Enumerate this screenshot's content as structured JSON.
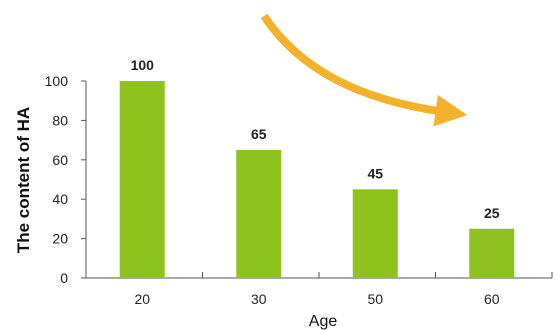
{
  "chart_data": {
    "type": "bar",
    "categories": [
      "20",
      "30",
      "50",
      "60"
    ],
    "values": [
      100,
      65,
      45,
      25
    ],
    "data_labels": [
      "100",
      "65",
      "45",
      "25"
    ],
    "xlabel": "Age",
    "ylabel": "The content of HA",
    "ylim": [
      0,
      100
    ],
    "yticks": [
      "0",
      "20",
      "40",
      "60",
      "80",
      "100"
    ],
    "grid": false,
    "bar_color": "#8dc21f",
    "arrow_color": "#f5b12b",
    "annotation": "decreasing-trend-arrow"
  }
}
